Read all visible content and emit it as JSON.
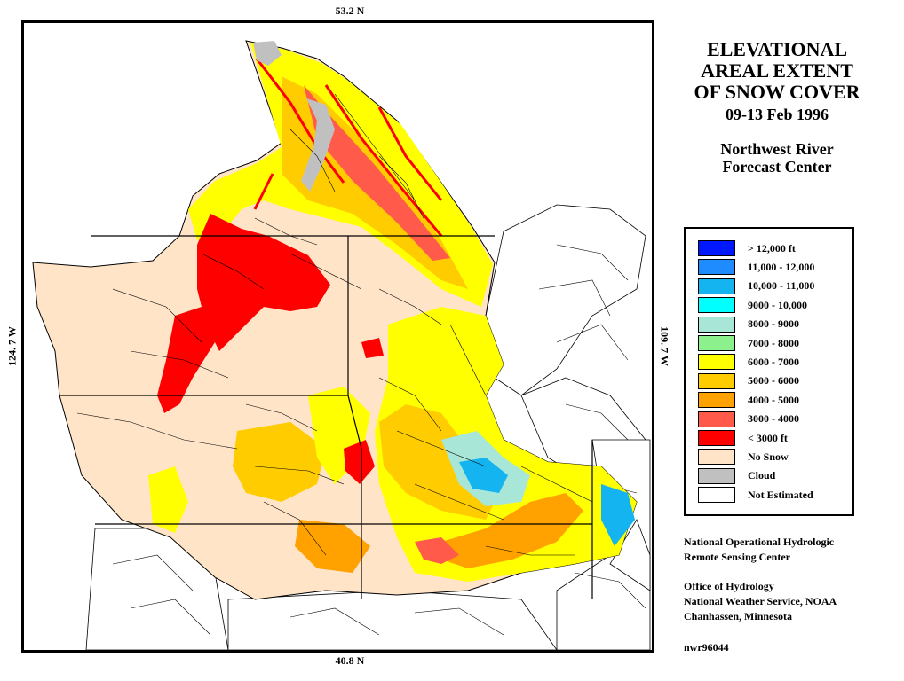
{
  "map": {
    "lat_top": "53.2 N",
    "lat_bottom": "40.8 N",
    "lon_left": "124. 7 W",
    "lon_right": "109. 7 W"
  },
  "title": {
    "line1": "ELEVATIONAL",
    "line2": "AREAL EXTENT",
    "line3": "OF SNOW COVER",
    "date": "09-13 Feb 1996",
    "center_line1": "Northwest River",
    "center_line2": "Forecast Center"
  },
  "legend": [
    {
      "label": "> 12,000 ft",
      "color": "#0018ff"
    },
    {
      "label": "11,000 - 12,000",
      "color": "#1e8cff"
    },
    {
      "label": "10,000 - 11,000",
      "color": "#14b4f0"
    },
    {
      "label": "9000 - 10,000",
      "color": "#00ffff"
    },
    {
      "label": "8000 - 9000",
      "color": "#a8e6d8"
    },
    {
      "label": "7000 - 8000",
      "color": "#8cf08c"
    },
    {
      "label": "6000 - 7000",
      "color": "#ffff00"
    },
    {
      "label": "5000 - 6000",
      "color": "#ffcc00"
    },
    {
      "label": "4000 - 5000",
      "color": "#ffa200"
    },
    {
      "label": "3000 - 4000",
      "color": "#ff5a4a"
    },
    {
      "label": "< 3000 ft",
      "color": "#ff0000"
    },
    {
      "label": "No Snow",
      "color": "#ffe4c8"
    },
    {
      "label": "Cloud",
      "color": "#c0c0c0"
    },
    {
      "label": "Not Estimated",
      "color": "#ffffff"
    }
  ],
  "credits": {
    "org1_line1": "National Operational Hydrologic",
    "org1_line2": "Remote Sensing Center",
    "org2_line1": "Office of Hydrology",
    "org2_line2": "National Weather Service, NOAA",
    "org2_line3": "Chanhassen, Minnesota",
    "product_id": "nwr96044"
  }
}
